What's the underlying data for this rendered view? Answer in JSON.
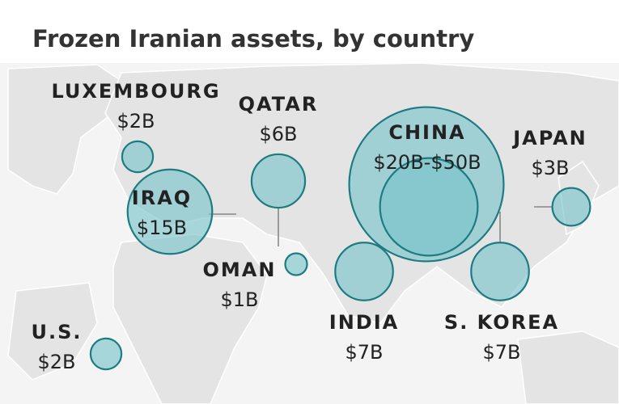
{
  "title": "Frozen Iranian assets, by country",
  "bubbles": [
    {
      "name": "LUXEMBOURG",
      "label": "$2B",
      "values": [
        2
      ]
    },
    {
      "name": "QATAR",
      "label": "$6B",
      "values": [
        6
      ]
    },
    {
      "name": "IRAQ",
      "label": "$15B",
      "values": [
        15
      ]
    },
    {
      "name": "OMAN",
      "label": "$1B",
      "values": [
        1
      ]
    },
    {
      "name": "CHINA",
      "label": "$20B-$50B",
      "values": [
        20,
        50
      ]
    },
    {
      "name": "JAPAN",
      "label": "$3B",
      "values": [
        3
      ]
    },
    {
      "name": "INDIA",
      "label": "$7B",
      "values": [
        7
      ]
    },
    {
      "name": "S. KOREA",
      "label": "$7B",
      "values": [
        7
      ]
    },
    {
      "name": "U.S.",
      "label": "$2B",
      "values": [
        2
      ]
    }
  ]
}
